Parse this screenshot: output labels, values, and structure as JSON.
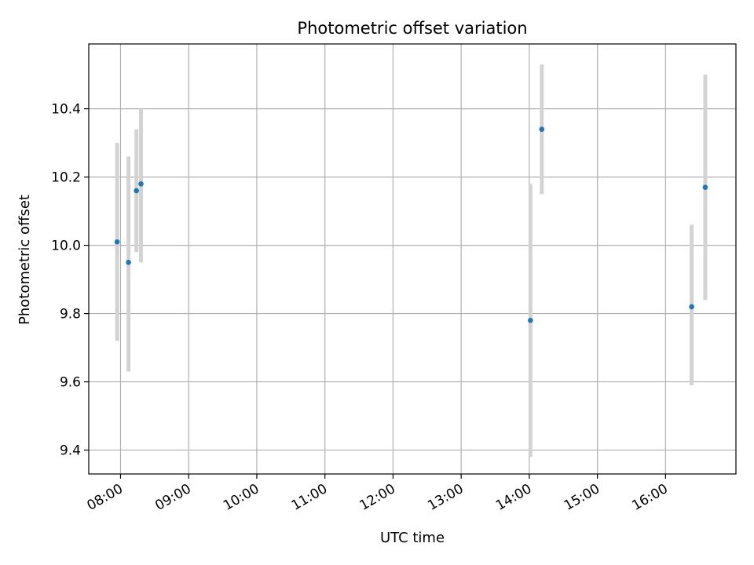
{
  "chart_data": {
    "type": "scatter",
    "title": "Photometric offset variation",
    "xlabel": "UTC time",
    "ylabel": "Photometric offset",
    "grid": true,
    "xlim": [
      "07:32",
      "17:02"
    ],
    "ylim": [
      9.33,
      10.59
    ],
    "x_ticks": [
      "08:00",
      "09:00",
      "10:00",
      "11:00",
      "12:00",
      "13:00",
      "14:00",
      "15:00",
      "16:00"
    ],
    "y_ticks": [
      "9.4",
      "9.6",
      "9.8",
      "10.0",
      "10.2",
      "10.4"
    ],
    "colors": {
      "marker": "#1f77b4",
      "errorbar": "#d3d3d3",
      "grid": "#b0b0b0"
    },
    "points": [
      {
        "x": "07:57",
        "y": 10.01,
        "yerr_low": 9.72,
        "yerr_high": 10.3
      },
      {
        "x": "08:07",
        "y": 9.95,
        "yerr_low": 9.63,
        "yerr_high": 10.26
      },
      {
        "x": "08:14",
        "y": 10.16,
        "yerr_low": 9.98,
        "yerr_high": 10.34
      },
      {
        "x": "08:18",
        "y": 10.18,
        "yerr_low": 9.95,
        "yerr_high": 10.4
      },
      {
        "x": "14:01",
        "y": 9.78,
        "yerr_low": 9.38,
        "yerr_high": 10.18
      },
      {
        "x": "14:11",
        "y": 10.34,
        "yerr_low": 10.15,
        "yerr_high": 10.53
      },
      {
        "x": "16:23",
        "y": 9.82,
        "yerr_low": 9.59,
        "yerr_high": 10.06
      },
      {
        "x": "16:35",
        "y": 10.17,
        "yerr_low": 9.84,
        "yerr_high": 10.5
      }
    ]
  }
}
